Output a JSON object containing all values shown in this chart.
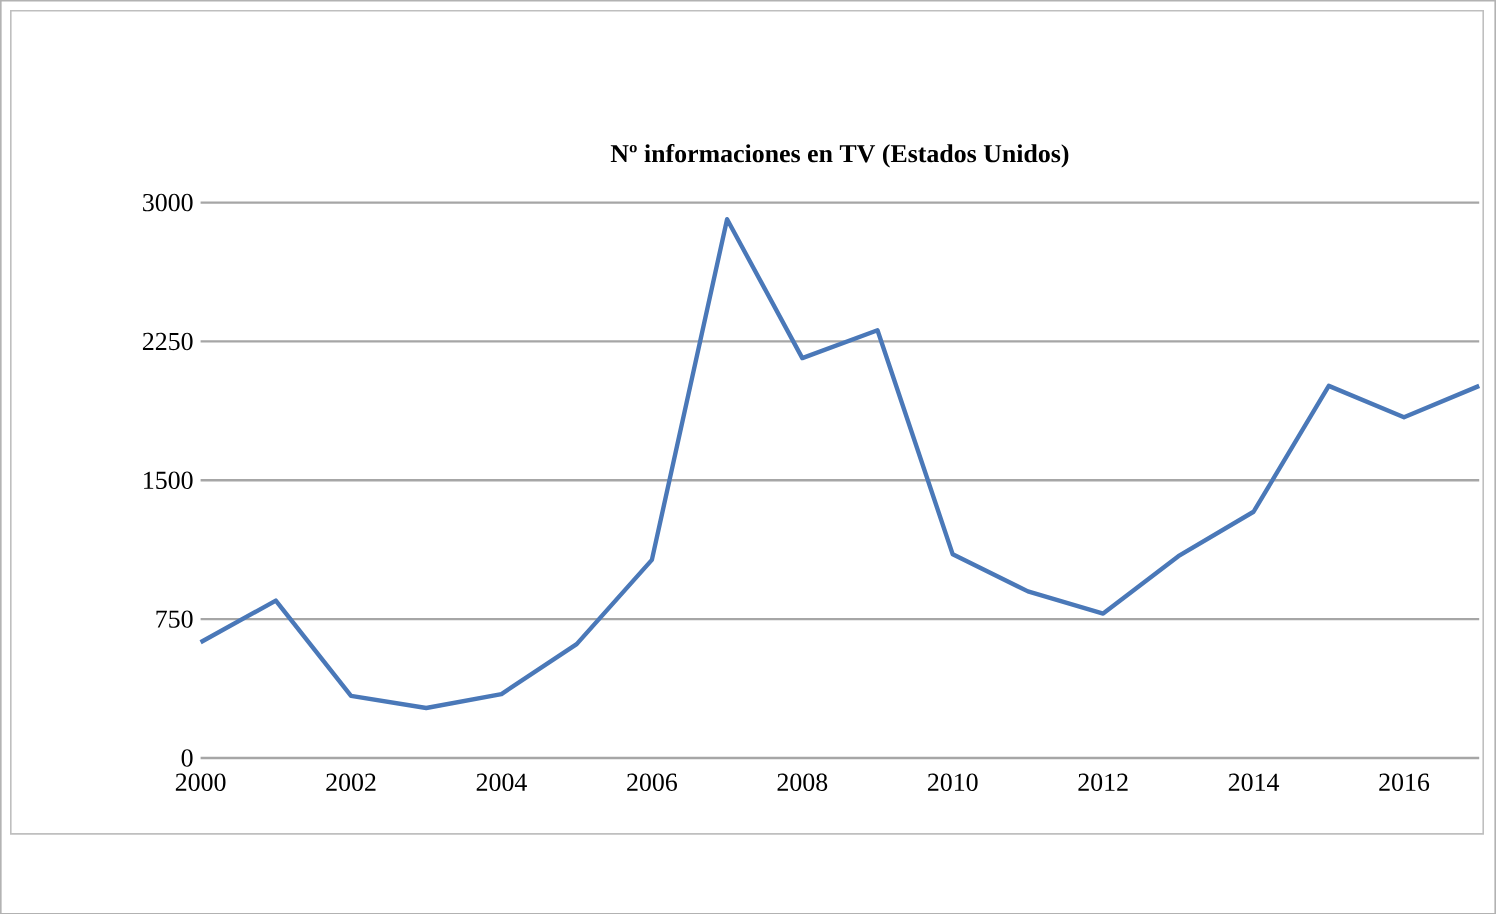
{
  "chart_data": {
    "type": "line",
    "title": "Nº informaciones en TV (Estados Unidos)",
    "x": [
      2000,
      2001,
      2002,
      2003,
      2004,
      2005,
      2006,
      2007,
      2008,
      2009,
      2010,
      2011,
      2012,
      2013,
      2014,
      2015,
      2016,
      2017
    ],
    "series": [
      {
        "color": "#4a78b8",
        "values": [
          625,
          850,
          335,
          270,
          345,
          615,
          1070,
          2910,
          2160,
          2310,
          1100,
          900,
          780,
          1090,
          1330,
          2010,
          1840,
          2010
        ]
      }
    ],
    "xlim": [
      2000,
      2017
    ],
    "xticks": [
      2000,
      2002,
      2004,
      2006,
      2008,
      2010,
      2012,
      2014,
      2016
    ],
    "ylim": [
      0,
      3000
    ],
    "yticks": [
      0,
      750,
      1500,
      2250,
      3000
    ],
    "grid": "y",
    "marker": "none",
    "line_style": "solid"
  }
}
